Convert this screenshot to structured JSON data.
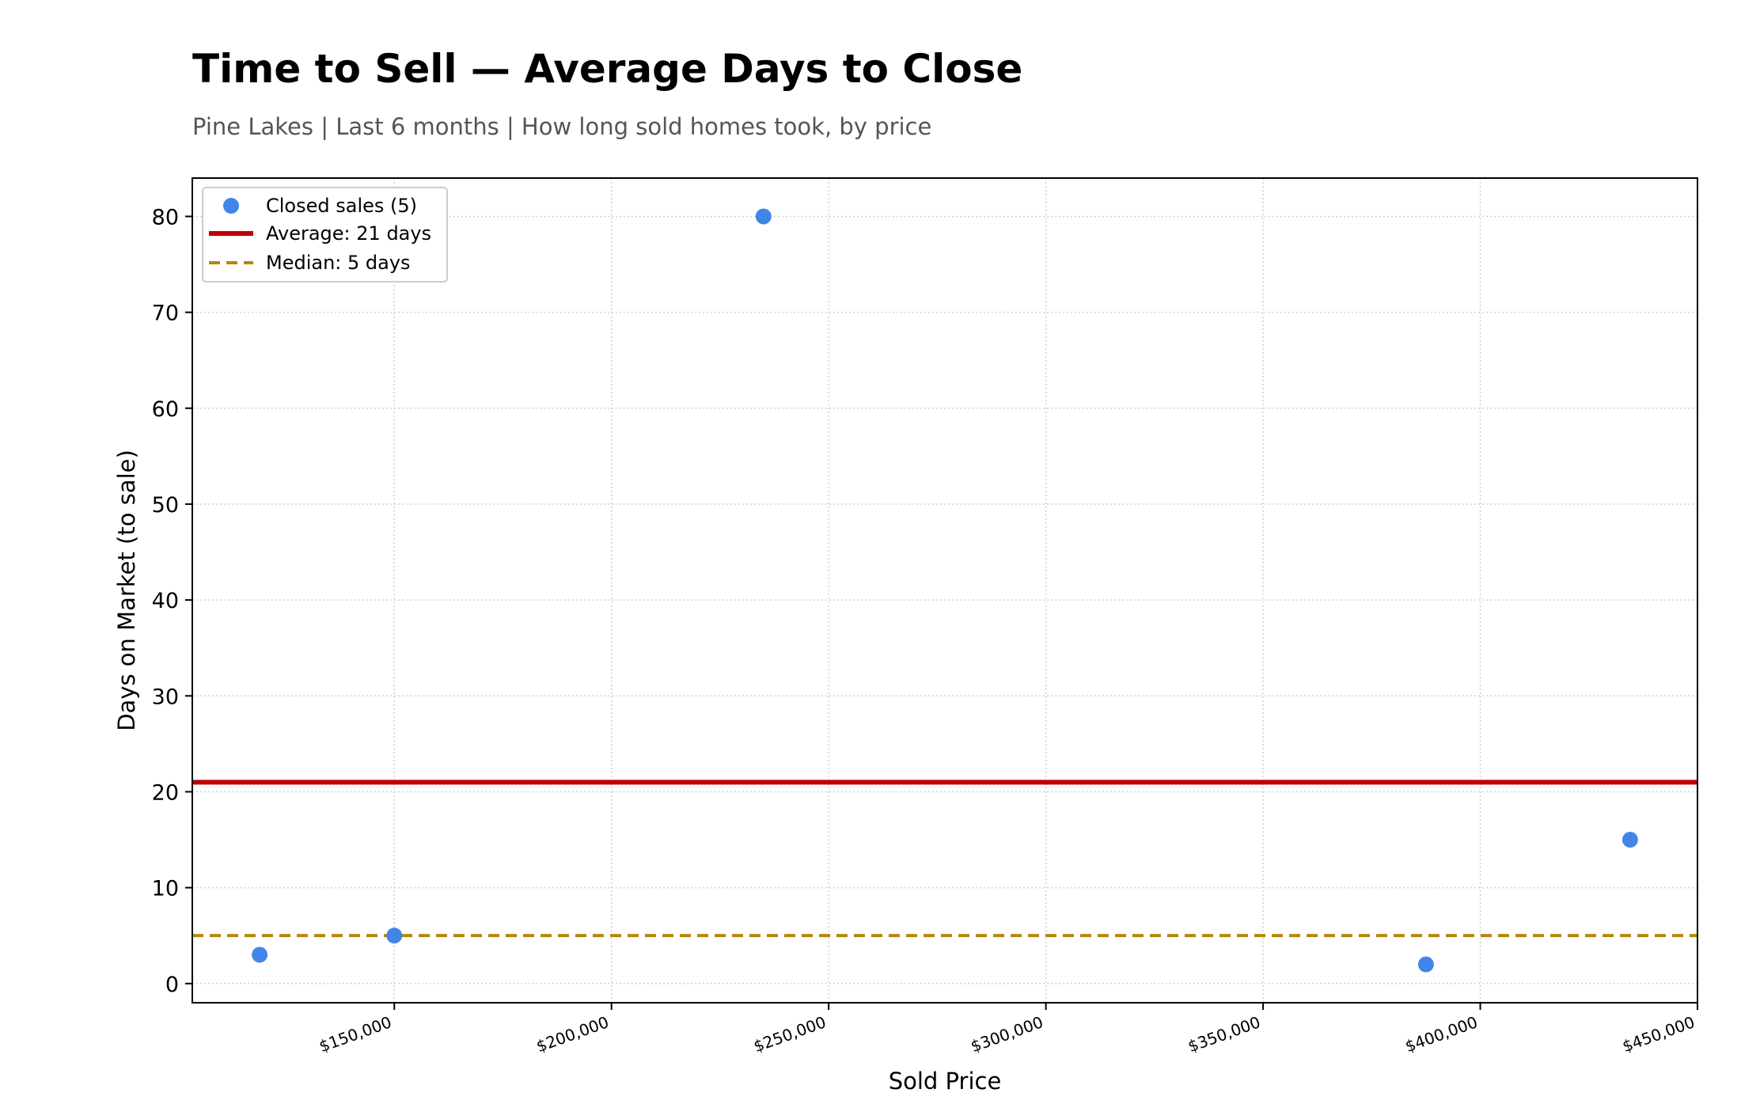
{
  "chart_data": {
    "type": "scatter",
    "title": "Time to Sell — Average Days to Close",
    "subtitle": "Pine Lakes  |  Last 6 months  |  How long sold homes took, by price",
    "xlabel": "Sold Price",
    "ylabel": "Days on Market (to sale)",
    "xlim": [
      103500,
      450000
    ],
    "ylim": [
      -2,
      84
    ],
    "xticks": [
      150000,
      200000,
      250000,
      300000,
      350000,
      400000,
      450000
    ],
    "xtick_labels": [
      "$150,000",
      "$200,000",
      "$250,000",
      "$300,000",
      "$350,000",
      "$400,000",
      "$450,000"
    ],
    "yticks": [
      0,
      10,
      20,
      30,
      40,
      50,
      60,
      70,
      80
    ],
    "grid": true,
    "legend_position": "top-left",
    "series": [
      {
        "name": "Closed sales (5)",
        "color": "#4285e8",
        "points": [
          {
            "x": 119000,
            "y": 3
          },
          {
            "x": 150000,
            "y": 5
          },
          {
            "x": 235000,
            "y": 80
          },
          {
            "x": 387500,
            "y": 2
          },
          {
            "x": 434500,
            "y": 15
          }
        ]
      }
    ],
    "reference_lines": [
      {
        "name": "Average: 21 days",
        "y": 21,
        "color": "#c00000",
        "style": "solid"
      },
      {
        "name": "Median: 5 days",
        "y": 5,
        "color": "#b8860b",
        "style": "dashed"
      }
    ]
  }
}
